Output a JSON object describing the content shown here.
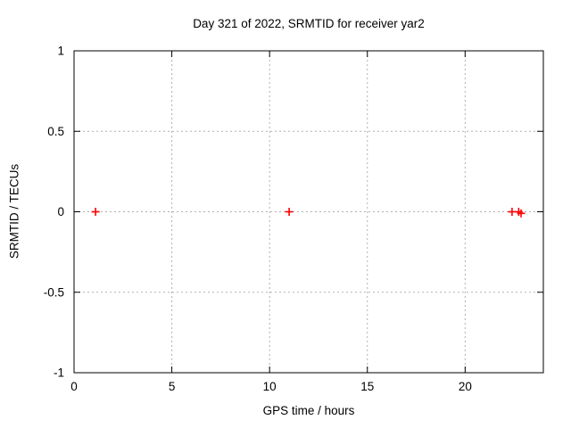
{
  "chart_data": {
    "type": "scatter",
    "title": "Day 321 of 2022, SRMTID for receiver yar2",
    "xlabel": "GPS time / hours",
    "ylabel": "SRMTID / TECUs",
    "xlim": [
      0,
      24
    ],
    "ylim": [
      -1,
      1
    ],
    "xticks": [
      0,
      5,
      10,
      15,
      20
    ],
    "xtick_labels": [
      "0",
      "5",
      "10",
      "15",
      "20"
    ],
    "yticks": [
      -1,
      -0.5,
      0,
      0.5,
      1
    ],
    "ytick_labels": [
      "-1",
      "-0.5",
      "0",
      "0.5",
      "1"
    ],
    "grid": true,
    "legend": "none",
    "series": [
      {
        "name": "SRMTID",
        "marker": "plus",
        "color": "#ff0000",
        "points": [
          [
            1.1,
            0
          ],
          [
            11.0,
            0
          ],
          [
            22.4,
            0
          ],
          [
            22.74,
            0
          ],
          [
            22.86,
            -0.01
          ]
        ]
      }
    ],
    "colors": {
      "background": "#ffffff",
      "axis": "#000000",
      "grid": "#b0b0b0",
      "marker": "#ff0000"
    }
  }
}
